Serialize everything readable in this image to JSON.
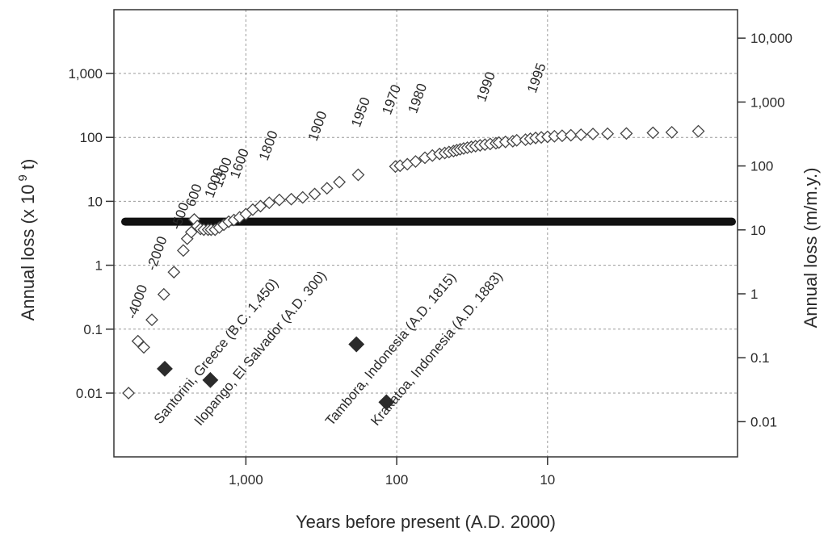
{
  "chart_data": {
    "type": "scatter",
    "xlabel": "Years before present (A.D. 2000)",
    "ylabel_left": {
      "text": "Annual loss (x 10",
      "superscript": "9",
      "suffix": " t)"
    },
    "ylabel_right": "Annual loss (m/m.y.)",
    "x_scale": "log",
    "x_reversed": true,
    "x_ticks": [
      {
        "value": 1000,
        "label": "1,000"
      },
      {
        "value": 100,
        "label": "100"
      },
      {
        "value": 10,
        "label": "10"
      }
    ],
    "y_scale": "log",
    "y_left_ticks": [
      {
        "value": 0.01,
        "label": "0.01"
      },
      {
        "value": 0.1,
        "label": "0.1"
      },
      {
        "value": 1,
        "label": "1"
      },
      {
        "value": 10,
        "label": "10"
      },
      {
        "value": 100,
        "label": "100"
      },
      {
        "value": 1000,
        "label": "1,000"
      }
    ],
    "y_right_ticks": [
      {
        "value": 0.01,
        "label": "0.01"
      },
      {
        "value": 0.1,
        "label": "0.1"
      },
      {
        "value": 1,
        "label": "1"
      },
      {
        "value": 10,
        "label": "10"
      },
      {
        "value": 100,
        "label": "100"
      },
      {
        "value": 1000,
        "label": "1,000"
      },
      {
        "value": 10000,
        "label": "10,000"
      }
    ],
    "grid": true,
    "horizontal_line": {
      "y": 4.8
    },
    "series": [
      {
        "marker": "open-diamond",
        "points": [
          [
            6000,
            0.01
          ],
          [
            5200,
            0.065
          ],
          [
            4750,
            0.052
          ],
          [
            4200,
            0.14
          ],
          [
            3500,
            0.35
          ],
          [
            3000,
            0.78
          ],
          [
            2600,
            1.7
          ],
          [
            2450,
            2.6
          ],
          [
            2300,
            3.3
          ],
          [
            2200,
            5.2
          ],
          [
            2100,
            4.1
          ],
          [
            2000,
            3.7
          ],
          [
            1900,
            3.6
          ],
          [
            1780,
            3.6
          ],
          [
            1700,
            3.6
          ],
          [
            1600,
            3.6
          ],
          [
            1500,
            3.9
          ],
          [
            1400,
            4.3
          ],
          [
            1300,
            4.8
          ],
          [
            1200,
            5.1
          ],
          [
            1100,
            5.6
          ],
          [
            1000,
            6.3
          ],
          [
            900,
            7.4
          ],
          [
            800,
            8.4
          ],
          [
            700,
            9.5
          ],
          [
            600,
            10.5
          ],
          [
            500,
            10.8
          ],
          [
            420,
            11.5
          ],
          [
            350,
            13
          ],
          [
            290,
            16
          ],
          [
            240,
            20
          ],
          [
            180,
            26
          ],
          [
            102,
            35
          ],
          [
            95,
            36
          ],
          [
            85,
            38
          ],
          [
            75,
            42
          ],
          [
            65,
            48
          ],
          [
            58,
            52
          ],
          [
            52,
            55
          ],
          [
            48,
            57
          ],
          [
            45,
            59
          ],
          [
            42,
            61
          ],
          [
            40,
            63
          ],
          [
            38,
            65
          ],
          [
            36,
            67
          ],
          [
            34,
            69
          ],
          [
            32,
            71
          ],
          [
            30,
            73
          ],
          [
            28,
            75
          ],
          [
            26,
            77
          ],
          [
            24,
            79
          ],
          [
            22,
            81
          ],
          [
            21,
            83
          ],
          [
            19,
            85
          ],
          [
            17,
            87
          ],
          [
            16,
            90
          ],
          [
            14,
            92
          ],
          [
            13,
            95
          ],
          [
            12,
            98
          ],
          [
            11,
            100
          ],
          [
            10,
            102
          ],
          [
            9,
            104
          ],
          [
            8,
            106
          ],
          [
            7,
            108
          ],
          [
            6,
            110
          ],
          [
            5,
            113
          ],
          [
            4,
            114
          ],
          [
            3,
            115
          ],
          [
            2,
            118
          ],
          [
            1.5,
            120
          ],
          [
            1,
            125
          ]
        ]
      },
      {
        "marker": "filled-diamond",
        "points": [
          [
            3450,
            0.024
          ],
          [
            1720,
            0.016
          ],
          [
            185,
            0.058
          ],
          [
            117,
            0.0072
          ]
        ]
      }
    ],
    "annotations": {
      "year_labels": [
        {
          "text": "-4000",
          "x": 5400,
          "y": 0.14
        },
        {
          "text": "-2000",
          "x": 4000,
          "y": 0.8
        },
        {
          "text": "-500",
          "x": 2750,
          "y": 3.5
        },
        {
          "text": "600",
          "x": 2200,
          "y": 8
        },
        {
          "text": "1000",
          "x": 1650,
          "y": 11
        },
        {
          "text": "1300",
          "x": 1450,
          "y": 16
        },
        {
          "text": "1600",
          "x": 1120,
          "y": 22
        },
        {
          "text": "1800",
          "x": 720,
          "y": 42
        },
        {
          "text": "1900",
          "x": 340,
          "y": 85
        },
        {
          "text": "1950",
          "x": 176,
          "y": 140
        },
        {
          "text": "1970",
          "x": 110,
          "y": 220
        },
        {
          "text": "1980",
          "x": 74,
          "y": 230
        },
        {
          "text": "1990",
          "x": 26,
          "y": 350
        },
        {
          "text": "1995",
          "x": 12,
          "y": 480
        }
      ],
      "volcano_labels": [
        {
          "text": "Santorini, Greece (B.C. 1,450)",
          "x": 3700,
          "y": 0.0032
        },
        {
          "text": "Ilopango, El Salvador (A.D. 300)",
          "x": 2000,
          "y": 0.003
        },
        {
          "text": "Tambora, Indonesia (A.D. 1815)",
          "x": 270,
          "y": 0.003
        },
        {
          "text": "Krakatoa, Indonesia (A.D. 1883)",
          "x": 135,
          "y": 0.003
        }
      ]
    }
  }
}
